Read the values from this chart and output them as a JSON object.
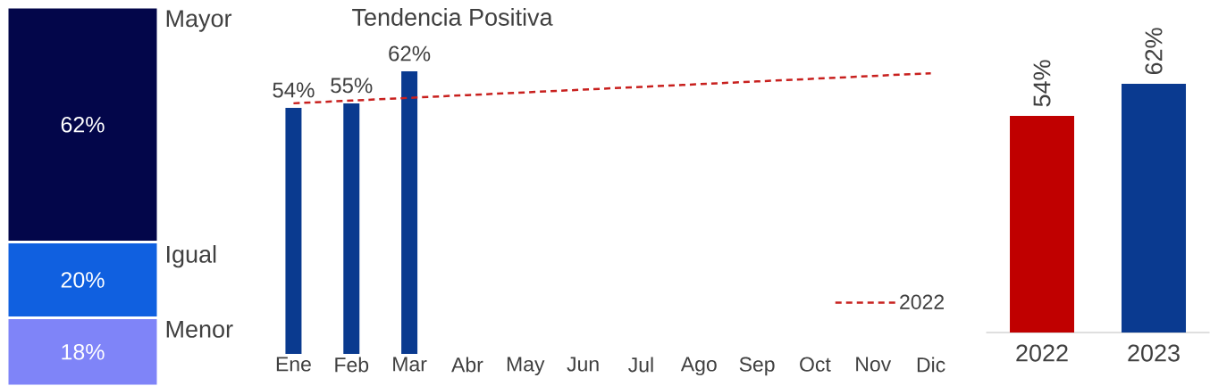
{
  "chart_data": [
    {
      "type": "bar",
      "stacked": true,
      "categories": [
        null
      ],
      "series": [
        {
          "name": "Menor",
          "color": "#7f84f8",
          "values": [
            18
          ],
          "value_labels": [
            "18%"
          ]
        },
        {
          "name": "Igual",
          "color": "#1060e0",
          "values": [
            20
          ],
          "value_labels": [
            "20%"
          ]
        },
        {
          "name": "Mayor",
          "color": "#03064a",
          "values": [
            62
          ],
          "value_labels": [
            "62%"
          ]
        }
      ]
    },
    {
      "type": "bar",
      "title": "Tendencia Positiva",
      "categories": [
        "Ene",
        "Feb",
        "Mar",
        "Abr",
        "May",
        "Jun",
        "Jul",
        "Ago",
        "Sep",
        "Oct",
        "Nov",
        "Dic"
      ],
      "legend": "bottom right",
      "series": [
        {
          "color": "#0a3a8f",
          "values": [
            54,
            55,
            62,
            null,
            null,
            null,
            null,
            null,
            null,
            null,
            null,
            null
          ],
          "value_labels": [
            "54%",
            "55%",
            "62%",
            null,
            null,
            null,
            null,
            null,
            null,
            null,
            null,
            null
          ]
        },
        {
          "name": "2022",
          "type": "line",
          "line_style": "dashed",
          "color": "#c8201e",
          "values": [
            55.0,
            55.6,
            56.2,
            56.8,
            57.4,
            58.0,
            58.6,
            59.2,
            59.8,
            60.4,
            61.0,
            61.6
          ]
        }
      ]
    },
    {
      "type": "bar",
      "categories": [
        "2022",
        "2023"
      ],
      "colors": [
        "#c00000",
        "#0a3a90"
      ],
      "values": [
        54,
        62
      ],
      "value_labels": [
        "54%",
        "62%"
      ]
    }
  ]
}
